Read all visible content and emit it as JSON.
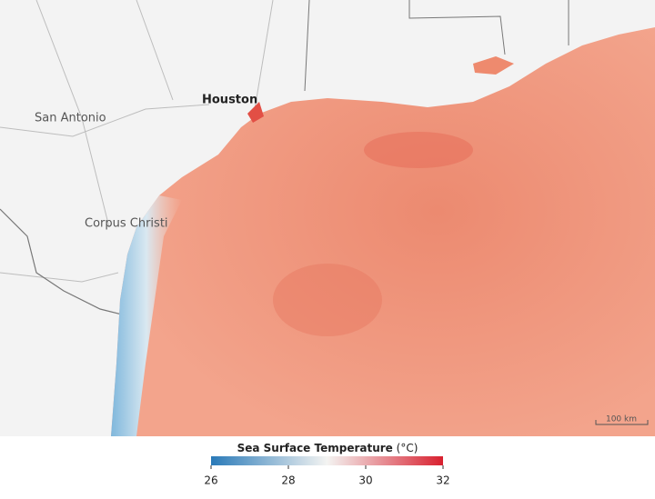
{
  "map": {
    "labels": [
      "Houston",
      "San Antonio",
      "Corpus Christi"
    ]
  },
  "scale_bar": {
    "label": "100 km"
  },
  "colorbar": {
    "title": "Sea Surface Temperature",
    "unit": "(°C)",
    "range": [
      26,
      32
    ],
    "ticks": [
      26,
      28,
      30,
      32
    ],
    "colors": [
      "#2a7ab8",
      "#f4f4f2",
      "#d8202f"
    ]
  }
}
